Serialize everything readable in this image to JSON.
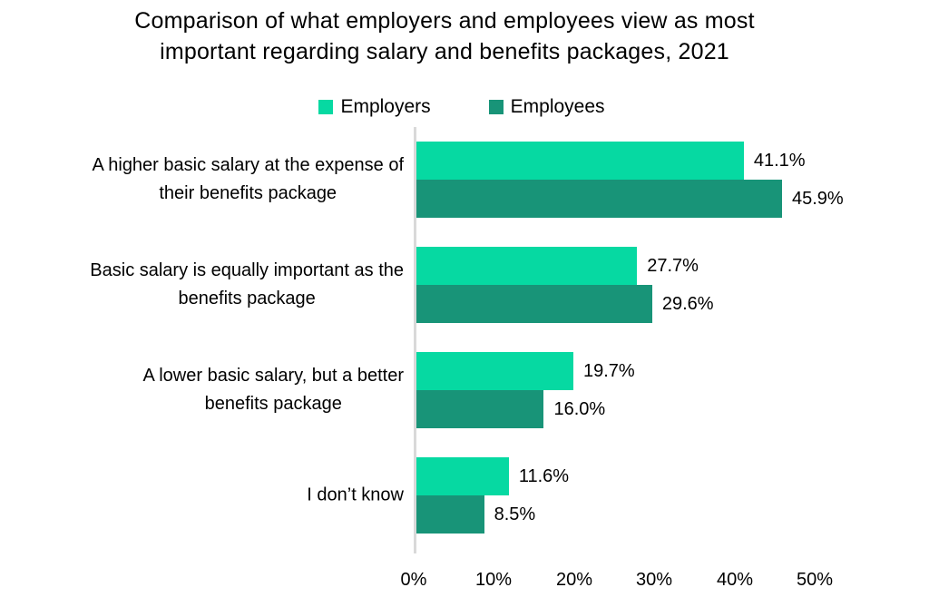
{
  "chart_data": {
    "type": "bar",
    "orientation": "horizontal",
    "title": "Comparison of what employers and employees view as most\nimportant regarding salary and benefits packages, 2021",
    "categories": [
      "A higher basic salary at the expense of\ntheir benefits package",
      "Basic salary is equally important as the\nbenefits package",
      "A lower basic salary, but a better\nbenefits package",
      "I don’t know"
    ],
    "series": [
      {
        "name": "Employers",
        "color": "#06D9A2",
        "values": [
          41.1,
          27.7,
          19.7,
          11.6
        ],
        "labels": [
          "41.1%",
          "27.7%",
          "19.7%",
          "11.6%"
        ]
      },
      {
        "name": "Employees",
        "color": "#189478",
        "values": [
          45.9,
          29.6,
          16.0,
          8.5
        ],
        "labels": [
          "45.9%",
          "29.6%",
          "16.0%",
          "8.5%"
        ]
      }
    ],
    "xlim": [
      0,
      50
    ],
    "xticks": [
      "0%",
      "10%",
      "20%",
      "30%",
      "40%",
      "50%"
    ],
    "legend_position": "top",
    "grid": false,
    "axis_color": "#D9D9D9",
    "text_color": "#000000"
  }
}
